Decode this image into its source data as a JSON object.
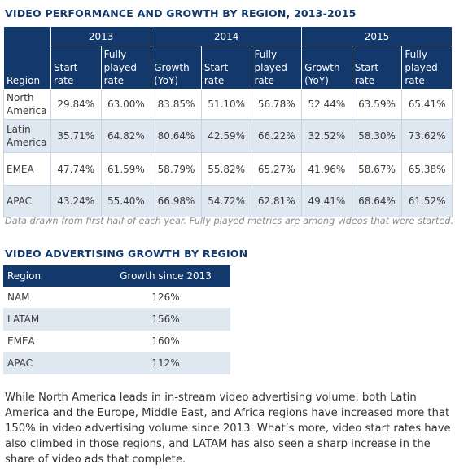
{
  "performance": {
    "title": "VIDEO PERFORMANCE AND GROWTH BY REGION, 2013-2015",
    "years": [
      "2013",
      "2014",
      "2015"
    ],
    "columns": [
      "Region",
      "Start rate",
      "Fully played rate",
      "Growth (YoY)",
      "Start rate",
      "Fully played rate",
      "Growth (YoY)",
      "Start rate",
      "Fully played rate"
    ],
    "rows": [
      [
        "North America",
        "29.84%",
        "63.00%",
        "83.85%",
        "51.10%",
        "56.78%",
        "52.44%",
        "63.59%",
        "65.41%"
      ],
      [
        "Latin America",
        "35.71%",
        "64.82%",
        "80.64%",
        "42.59%",
        "66.22%",
        "32.52%",
        "58.30%",
        "73.62%"
      ],
      [
        "EMEA",
        "47.74%",
        "61.59%",
        "58.79%",
        "55.82%",
        "65.27%",
        "41.96%",
        "58.67%",
        "65.38%"
      ],
      [
        "APAC",
        "43.24%",
        "55.40%",
        "66.98%",
        "54.72%",
        "62.81%",
        "49.41%",
        "68.64%",
        "61.52%"
      ]
    ],
    "note": "Data drawn from first half of each year. Fully played metrics are among videos that were started."
  },
  "advertising": {
    "title": "VIDEO ADVERTISING GROWTH BY REGION",
    "columns": [
      "Region",
      "Growth since 2013"
    ],
    "rows": [
      [
        "NAM",
        "126%"
      ],
      [
        "LATAM",
        "156%"
      ],
      [
        "EMEA",
        "160%"
      ],
      [
        "APAC",
        "112%"
      ]
    ]
  },
  "paragraph": "While North America leads in in-stream video advertising volume, both Latin America and the Europe, Middle East, and Africa regions have increased more that 150% in video advertising volume since 2013. What’s more, video start rates have also climbed in those regions, and LATAM has also seen a sharp increase in the share of video ads that complete."
}
